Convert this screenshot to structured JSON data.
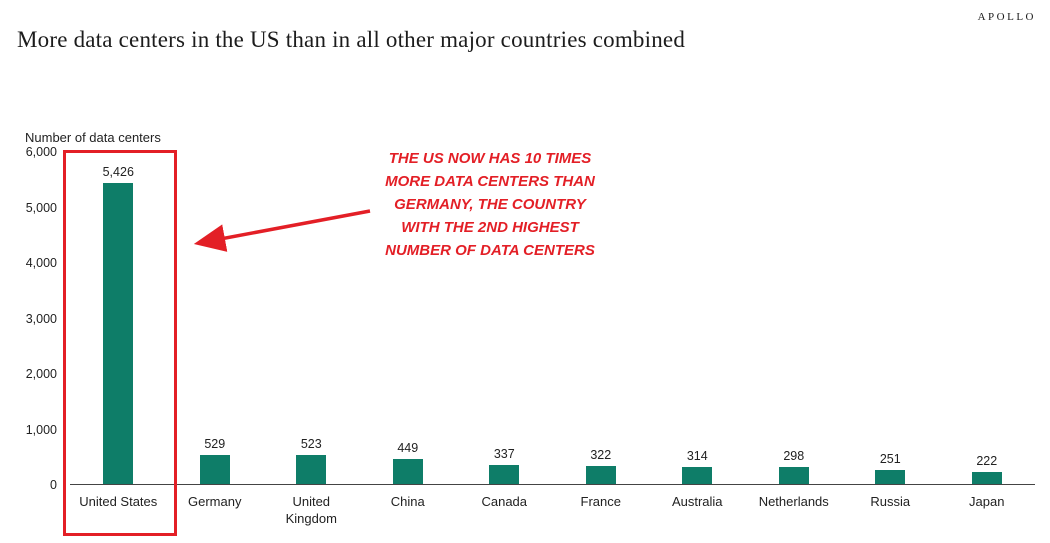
{
  "brand": {
    "logo": "APOLLO"
  },
  "header": {
    "title": "More data centers in the US than in all other major countries combined"
  },
  "chart_data": {
    "type": "bar",
    "title": "More data centers in the US than in all other major countries combined",
    "ylabel": "Number of data centers",
    "xlabel": "",
    "categories": [
      "United States",
      "Germany",
      "United Kingdom",
      "China",
      "Canada",
      "France",
      "Australia",
      "Netherlands",
      "Russia",
      "Japan"
    ],
    "values": [
      5426,
      529,
      523,
      449,
      337,
      322,
      314,
      298,
      251,
      222
    ],
    "value_labels": [
      "5,426",
      "529",
      "523",
      "449",
      "337",
      "322",
      "314",
      "298",
      "251",
      "222"
    ],
    "ylim": [
      0,
      6000
    ],
    "ytick_labels": [
      "6,000",
      "5,000",
      "4,000",
      "3,000",
      "2,000",
      "1,000",
      "0"
    ],
    "grid": false,
    "legend": "none",
    "bar_color": "#0e7d68",
    "highlight": {
      "category": "United States",
      "box_color": "#e31f26"
    }
  },
  "annotation": {
    "lines": [
      "THE US NOW HAS 10 TIMES",
      "MORE DATA CENTERS THAN",
      "GERMANY, THE COUNTRY",
      "WITH THE 2ND HIGHEST",
      "NUMBER OF DATA CENTERS"
    ],
    "color": "#e31f26",
    "arrow_color": "#e31f26"
  }
}
